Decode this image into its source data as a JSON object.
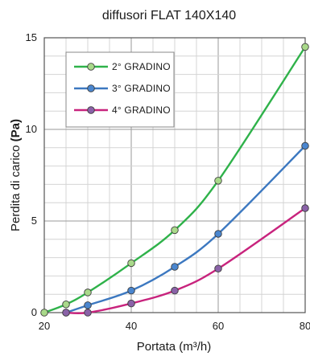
{
  "chart_data": {
    "type": "line",
    "title": "diffusori FLAT 140X140",
    "xlabel": "Portata (m³/h)",
    "ylabel_prefix": "Perdita di carico ",
    "ylabel_unit": "(Pa)",
    "xlim": [
      20,
      80
    ],
    "ylim": [
      0,
      15
    ],
    "x_ticks": [
      20,
      40,
      60,
      80
    ],
    "y_ticks": [
      0,
      5,
      10,
      15
    ],
    "grid": true,
    "legend_position": "top-left",
    "series": [
      {
        "name": "2° GRADINO",
        "color": "#2fb24a",
        "marker_fill": "#a9d98a",
        "x": [
          20,
          25,
          30,
          40,
          50,
          60,
          80
        ],
        "y": [
          0,
          0.45,
          1.1,
          2.7,
          4.5,
          7.2,
          14.5
        ]
      },
      {
        "name": "3° GRADINO",
        "color": "#3c78c0",
        "marker_fill": "#4a86cf",
        "x": [
          25,
          30,
          40,
          50,
          60,
          80
        ],
        "y": [
          0,
          0.4,
          1.2,
          2.5,
          4.3,
          9.1
        ]
      },
      {
        "name": "4° GRADINO",
        "color": "#c8237d",
        "marker_fill": "#8a62a8",
        "x": [
          25,
          30,
          40,
          50,
          60,
          80
        ],
        "y": [
          0,
          0,
          0.5,
          1.2,
          2.4,
          5.7
        ]
      }
    ]
  }
}
